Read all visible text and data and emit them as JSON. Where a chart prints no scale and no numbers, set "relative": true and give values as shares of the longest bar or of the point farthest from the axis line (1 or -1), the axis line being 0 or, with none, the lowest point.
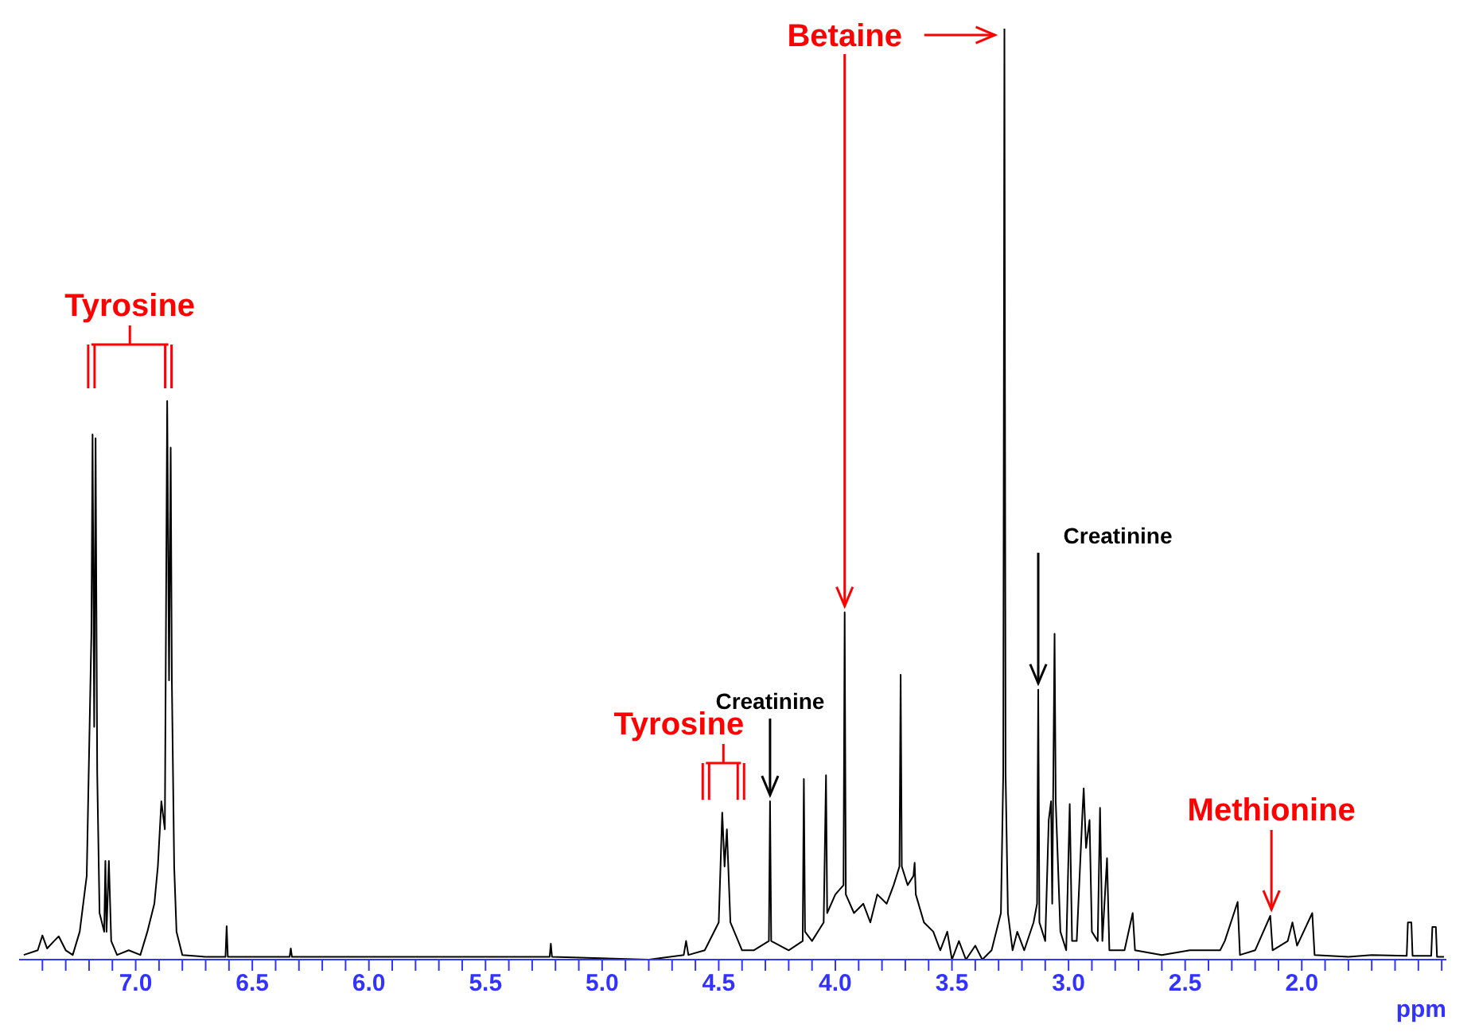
{
  "chart_data": {
    "type": "line",
    "relative": true,
    "xlabel": "ppm",
    "xlim": [
      7.5,
      1.38
    ],
    "xticks": [
      {
        "value": 7.4,
        "label": null
      },
      {
        "value": 7.3,
        "label": null
      },
      {
        "value": 7.2,
        "label": null
      },
      {
        "value": 7.1,
        "label": null
      },
      {
        "value": 7.0,
        "label": "7.0"
      },
      {
        "value": 6.9,
        "label": null
      },
      {
        "value": 6.8,
        "label": null
      },
      {
        "value": 6.7,
        "label": null
      },
      {
        "value": 6.6,
        "label": null
      },
      {
        "value": 6.5,
        "label": "6.5"
      },
      {
        "value": 6.4,
        "label": null
      },
      {
        "value": 6.3,
        "label": null
      },
      {
        "value": 6.2,
        "label": null
      },
      {
        "value": 6.1,
        "label": null
      },
      {
        "value": 6.0,
        "label": "6.0"
      },
      {
        "value": 5.9,
        "label": null
      },
      {
        "value": 5.8,
        "label": null
      },
      {
        "value": 5.7,
        "label": null
      },
      {
        "value": 5.6,
        "label": null
      },
      {
        "value": 5.5,
        "label": "5.5"
      },
      {
        "value": 5.4,
        "label": null
      },
      {
        "value": 5.3,
        "label": null
      },
      {
        "value": 5.2,
        "label": null
      },
      {
        "value": 5.1,
        "label": null
      },
      {
        "value": 5.0,
        "label": "5.0"
      },
      {
        "value": 4.9,
        "label": null
      },
      {
        "value": 4.8,
        "label": null
      },
      {
        "value": 4.7,
        "label": null
      },
      {
        "value": 4.6,
        "label": null
      },
      {
        "value": 4.5,
        "label": "4.5"
      },
      {
        "value": 4.4,
        "label": null
      },
      {
        "value": 4.3,
        "label": null
      },
      {
        "value": 4.2,
        "label": null
      },
      {
        "value": 4.1,
        "label": null
      },
      {
        "value": 4.0,
        "label": "4.0"
      },
      {
        "value": 3.9,
        "label": null
      },
      {
        "value": 3.8,
        "label": null
      },
      {
        "value": 3.7,
        "label": null
      },
      {
        "value": 3.6,
        "label": null
      },
      {
        "value": 3.5,
        "label": "3.5"
      },
      {
        "value": 3.4,
        "label": null
      },
      {
        "value": 3.3,
        "label": null
      },
      {
        "value": 3.2,
        "label": null
      },
      {
        "value": 3.1,
        "label": null
      },
      {
        "value": 3.0,
        "label": "3.0"
      },
      {
        "value": 2.9,
        "label": null
      },
      {
        "value": 2.8,
        "label": null
      },
      {
        "value": 2.7,
        "label": null
      },
      {
        "value": 2.6,
        "label": null
      },
      {
        "value": 2.5,
        "label": "2.5"
      },
      {
        "value": 2.4,
        "label": null
      },
      {
        "value": 2.3,
        "label": null
      },
      {
        "value": 2.2,
        "label": null
      },
      {
        "value": 2.1,
        "label": null
      },
      {
        "value": 2.0,
        "label": "2.0"
      },
      {
        "value": 1.9,
        "label": null
      },
      {
        "value": 1.8,
        "label": null
      },
      {
        "value": 1.7,
        "label": null
      },
      {
        "value": 1.6,
        "label": null
      },
      {
        "value": 1.5,
        "label": null
      },
      {
        "value": 1.4,
        "label": null
      }
    ],
    "x": [
      7.48,
      7.42,
      7.4,
      7.38,
      7.35,
      7.33,
      7.3,
      7.27,
      7.24,
      7.21,
      7.19,
      7.185,
      7.178,
      7.172,
      7.165,
      7.155,
      7.135,
      7.13,
      7.125,
      7.115,
      7.105,
      7.08,
      7.03,
      6.98,
      6.95,
      6.92,
      6.905,
      6.89,
      6.875,
      6.865,
      6.857,
      6.85,
      6.845,
      6.835,
      6.825,
      6.8,
      6.7,
      6.615,
      6.61,
      6.605,
      6.34,
      6.335,
      6.33,
      5.225,
      5.22,
      5.215,
      4.8,
      4.65,
      4.64,
      4.63,
      4.56,
      4.5,
      4.485,
      4.475,
      4.465,
      4.45,
      4.4,
      4.35,
      4.285,
      4.28,
      4.275,
      4.2,
      4.14,
      4.135,
      4.13,
      4.1,
      4.05,
      4.04,
      4.035,
      4.0,
      3.965,
      3.96,
      3.955,
      3.92,
      3.88,
      3.85,
      3.82,
      3.78,
      3.75,
      3.725,
      3.72,
      3.715,
      3.69,
      3.665,
      3.66,
      3.655,
      3.62,
      3.58,
      3.55,
      3.52,
      3.5,
      3.47,
      3.44,
      3.4,
      3.37,
      3.33,
      3.29,
      3.28,
      3.275,
      3.27,
      3.26,
      3.24,
      3.22,
      3.19,
      3.15,
      3.135,
      3.13,
      3.125,
      3.1,
      3.085,
      3.075,
      3.07,
      3.06,
      3.055,
      3.045,
      3.035,
      3.01,
      2.995,
      2.985,
      2.965,
      2.94,
      2.935,
      2.925,
      2.91,
      2.9,
      2.875,
      2.865,
      2.855,
      2.835,
      2.825,
      2.76,
      2.725,
      2.715,
      2.6,
      2.48,
      2.35,
      2.33,
      2.275,
      2.265,
      2.2,
      2.135,
      2.125,
      2.06,
      2.04,
      2.02,
      1.955,
      1.945,
      1.8,
      1.7,
      1.55,
      1.545,
      1.53,
      1.525,
      1.445,
      1.44,
      1.425,
      1.42,
      1.39
    ],
    "values": [
      0.005,
      0.01,
      0.026,
      0.012,
      0.02,
      0.025,
      0.01,
      0.005,
      0.03,
      0.09,
      0.35,
      0.564,
      0.25,
      0.56,
      0.2,
      0.05,
      0.03,
      0.106,
      0.03,
      0.106,
      0.02,
      0.005,
      0.01,
      0.005,
      0.03,
      0.06,
      0.1,
      0.17,
      0.14,
      0.6,
      0.3,
      0.55,
      0.3,
      0.1,
      0.03,
      0.005,
      0.003,
      0.003,
      0.036,
      0.003,
      0.003,
      0.012,
      0.003,
      0.003,
      0.017,
      0.003,
      0,
      0.005,
      0.02,
      0.005,
      0.01,
      0.04,
      0.158,
      0.1,
      0.14,
      0.04,
      0.01,
      0.01,
      0.02,
      0.17,
      0.02,
      0.01,
      0.02,
      0.194,
      0.03,
      0.02,
      0.04,
      0.198,
      0.05,
      0.07,
      0.08,
      0.373,
      0.07,
      0.05,
      0.06,
      0.04,
      0.07,
      0.06,
      0.08,
      0.1,
      0.306,
      0.1,
      0.08,
      0.09,
      0.104,
      0.07,
      0.04,
      0.03,
      0.01,
      0.03,
      0,
      0.02,
      0,
      0.015,
      0,
      0.01,
      0.05,
      0.2,
      1.0,
      0.2,
      0.05,
      0.01,
      0.03,
      0.01,
      0.04,
      0.06,
      0.29,
      0.04,
      0.02,
      0.15,
      0.17,
      0.06,
      0.35,
      0.17,
      0.1,
      0.03,
      0.01,
      0.167,
      0.02,
      0.02,
      0.16,
      0.184,
      0.12,
      0.15,
      0.03,
      0.02,
      0.163,
      0.02,
      0.109,
      0.01,
      0.01,
      0.05,
      0.01,
      0.005,
      0.01,
      0.01,
      0.02,
      0.062,
      0.005,
      0.01,
      0.047,
      0.01,
      0.02,
      0.04,
      0.015,
      0.05,
      0.005,
      0.003,
      0.005,
      0.004,
      0.04,
      0.04,
      0.004,
      0.004,
      0.035,
      0.035,
      0.003,
      0.003
    ],
    "color": "#000000",
    "annotations": [
      {
        "text": "Tyrosine",
        "x": 6.865,
        "y": 0.6
      },
      {
        "text": "Betaine",
        "x": 3.96,
        "y": 0.373
      },
      {
        "text": "Creatinine",
        "x": 4.28,
        "y": 0.17
      },
      {
        "text": "Tyrosine",
        "x": 4.48,
        "y": 0.158
      },
      {
        "text": "Creatinine",
        "x": 3.13,
        "y": 0.29
      },
      {
        "text": "Methionine",
        "x": 2.13,
        "y": 0.047
      }
    ]
  }
}
